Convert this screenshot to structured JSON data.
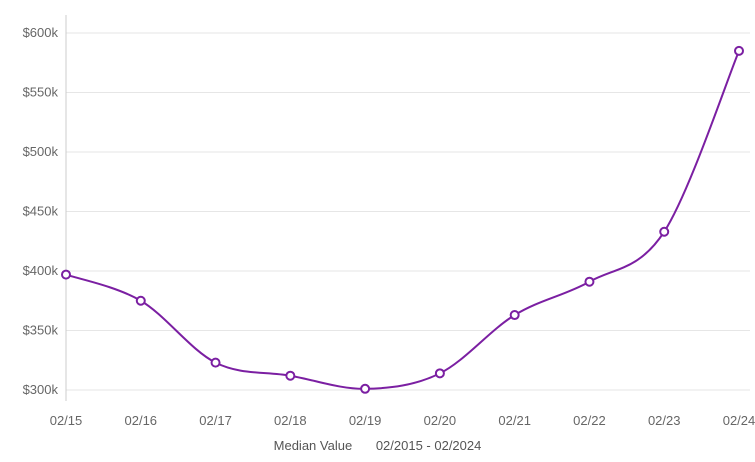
{
  "chart_data": {
    "type": "line",
    "x": [
      "02/15",
      "02/16",
      "02/17",
      "02/18",
      "02/19",
      "02/20",
      "02/21",
      "02/22",
      "02/23",
      "02/24"
    ],
    "y_ticks": [
      "$300k",
      "$350k",
      "$400k",
      "$450k",
      "$500k",
      "$550k",
      "$600k"
    ],
    "y_tick_values": [
      300000,
      350000,
      400000,
      450000,
      500000,
      550000,
      600000
    ],
    "ylim": [
      290000,
      615000
    ],
    "grid": true,
    "line_color": "#7b1fa2",
    "series": [
      {
        "values": [
          397000,
          375000,
          323000,
          312000,
          301000,
          314000,
          363000,
          391000,
          433000,
          585000
        ]
      }
    ],
    "legend": {
      "label": "Median Value",
      "range": "02/2015 - 02/2024",
      "placement": "bottom"
    }
  }
}
